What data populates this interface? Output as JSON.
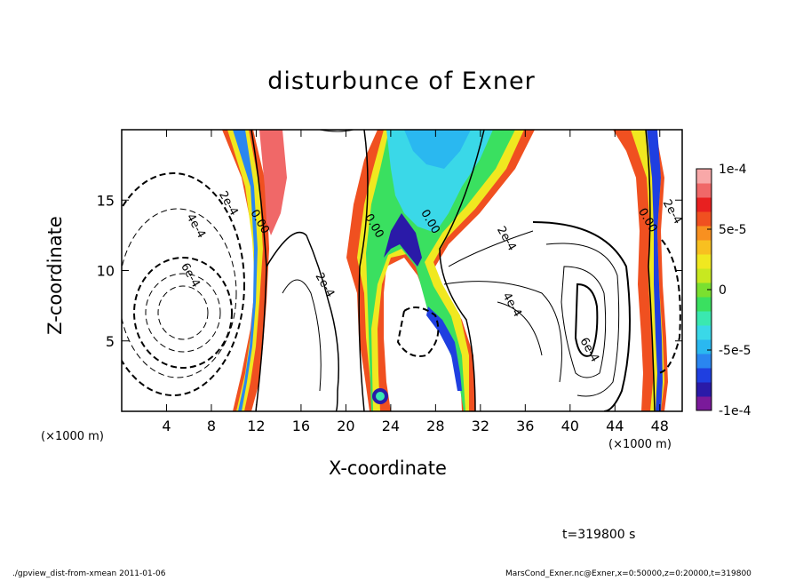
{
  "chart_data": {
    "type": "contour",
    "title": "disturbunce of Exner",
    "xlabel": "X-coordinate",
    "ylabel": "Z-coordinate",
    "x_unit_label": "(×1000 m)",
    "y_unit_label": "(×1000 m)",
    "xlim": [
      0,
      50
    ],
    "ylim": [
      0,
      20
    ],
    "x_ticks": [
      "4",
      "8",
      "12",
      "16",
      "20",
      "24",
      "28",
      "32",
      "36",
      "40",
      "44",
      "48"
    ],
    "x_tick_values": [
      4,
      8,
      12,
      16,
      20,
      24,
      28,
      32,
      36,
      40,
      44,
      48
    ],
    "y_ticks": [
      "5",
      "10",
      "15"
    ],
    "y_tick_values": [
      5,
      10,
      15
    ],
    "colorbar": {
      "ticks": [
        "1e-4",
        "5e-5",
        "0",
        "-5e-5",
        "-1e-4"
      ],
      "tick_values": [
        0.0001,
        5e-05,
        0,
        -5e-05,
        -0.0001
      ],
      "colors": [
        "#7a1a9a",
        "#2a1aa8",
        "#1f3fe0",
        "#2a86f0",
        "#2ab8f0",
        "#3ad8e8",
        "#3ae8b0",
        "#3ae060",
        "#7ae030",
        "#c8e820",
        "#f0e820",
        "#f8c020",
        "#f89020",
        "#f05020",
        "#e82020",
        "#f06868",
        "#f8a8a8"
      ]
    },
    "contour_labels": [
      {
        "text": "2e-4",
        "x": 9.6,
        "y": 14.8
      },
      {
        "text": "4e-4",
        "x": 6.7,
        "y": 13.2
      },
      {
        "text": "6e-4",
        "x": 6.2,
        "y": 9.7
      },
      {
        "text": "0.00",
        "x": 12.4,
        "y": 13.5
      },
      {
        "text": "2e-4",
        "x": 18.2,
        "y": 9.0
      },
      {
        "text": "0.00",
        "x": 22.6,
        "y": 13.2
      },
      {
        "text": "0.00",
        "x": 27.6,
        "y": 13.5
      },
      {
        "text": "2e-4",
        "x": 34.4,
        "y": 12.3
      },
      {
        "text": "4e-4",
        "x": 34.9,
        "y": 7.6
      },
      {
        "text": "6e-4",
        "x": 41.8,
        "y": 4.4
      },
      {
        "text": "0.00",
        "x": 47.0,
        "y": 13.6
      },
      {
        "text": "2e-4",
        "x": 49.2,
        "y": 14.2
      }
    ]
  },
  "annotations": {
    "time": "t=319800 s",
    "footer_left": "./gpview_dist-from-xmean  2011-01-06",
    "footer_right": "MarsCond_Exner.nc@Exner,x=0:50000,z=0:20000,t=319800"
  }
}
